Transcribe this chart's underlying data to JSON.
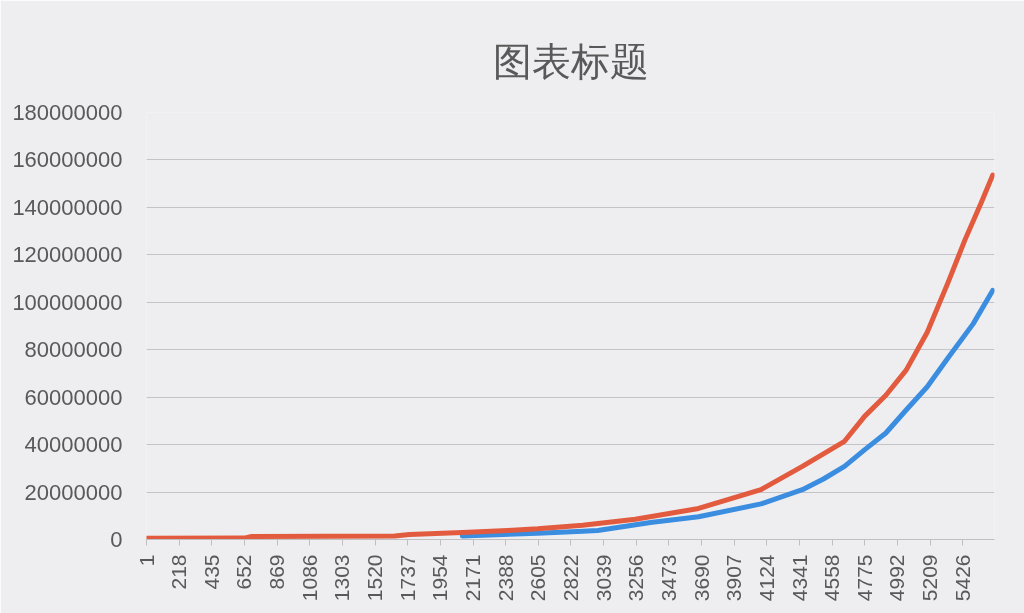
{
  "chart_data": {
    "type": "line",
    "title": "图表标题",
    "series": [
      {
        "color": "#3b8de0",
        "x": [
          2100,
          2600,
          2900,
          3000,
          3350,
          3670,
          4085,
          4360,
          4500,
          4640,
          4775,
          4915,
          5050,
          5190,
          5330,
          5495,
          5625
        ],
        "values": [
          1500000,
          2600000,
          3500000,
          3800000,
          7200000,
          9600000,
          15000000,
          21000000,
          25500000,
          30800000,
          37900000,
          44900000,
          54600000,
          64400000,
          76700000,
          90900000,
          105000000
        ]
      },
      {
        "color": "#e35b3e",
        "x": [
          1,
          650,
          700,
          1650,
          1750,
          2100,
          2400,
          2600,
          2900,
          3250,
          3670,
          4085,
          4360,
          4500,
          4640,
          4775,
          4915,
          5050,
          5190,
          5330,
          5440,
          5550,
          5625
        ],
        "values": [
          500000,
          600000,
          1300000,
          1500000,
          2100000,
          3000000,
          3800000,
          4500000,
          6000000,
          8500000,
          13100000,
          21000000,
          30800000,
          36100000,
          41400000,
          52000000,
          60800000,
          71400000,
          87400000,
          108600000,
          126200000,
          142200000,
          153600000
        ]
      }
    ],
    "xlim": [
      1,
      5637
    ],
    "xticks": [
      1,
      218,
      435,
      652,
      869,
      1086,
      1303,
      1520,
      1737,
      1954,
      2171,
      2388,
      2605,
      2822,
      3039,
      3256,
      3473,
      3690,
      3907,
      4124,
      4341,
      4558,
      4775,
      4992,
      5209,
      5426
    ],
    "ylim": [
      0,
      180000000
    ],
    "yticks": [
      0,
      20000000,
      40000000,
      60000000,
      80000000,
      100000000,
      120000000,
      140000000,
      160000000,
      180000000
    ],
    "grid": "y",
    "marker": "none",
    "line_style": "solid"
  }
}
